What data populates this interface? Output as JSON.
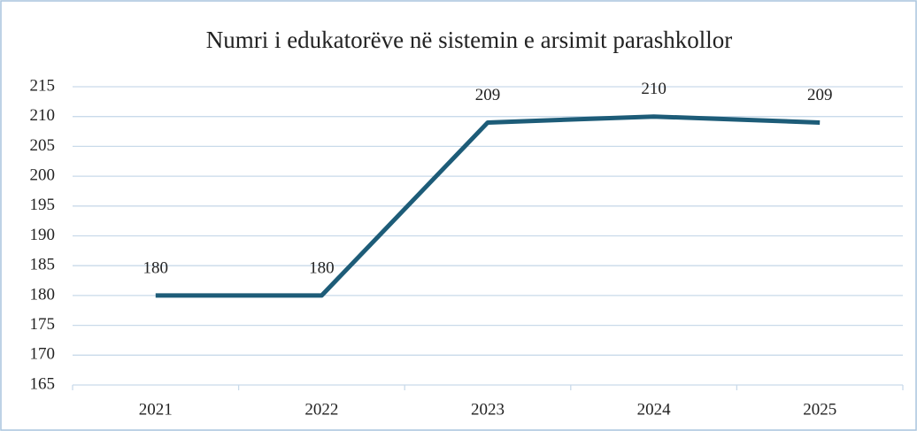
{
  "chart_data": {
    "type": "line",
    "title": "Numri i edukatorëve në sistemin e arsimit parashkollor",
    "categories": [
      "2021",
      "2022",
      "2023",
      "2024",
      "2025"
    ],
    "values": [
      180,
      180,
      209,
      210,
      209
    ],
    "color": "#1d5c78",
    "ylim": [
      165,
      215
    ],
    "yticks": [
      165,
      170,
      175,
      180,
      185,
      190,
      195,
      200,
      205,
      210,
      215
    ],
    "grid": true
  }
}
